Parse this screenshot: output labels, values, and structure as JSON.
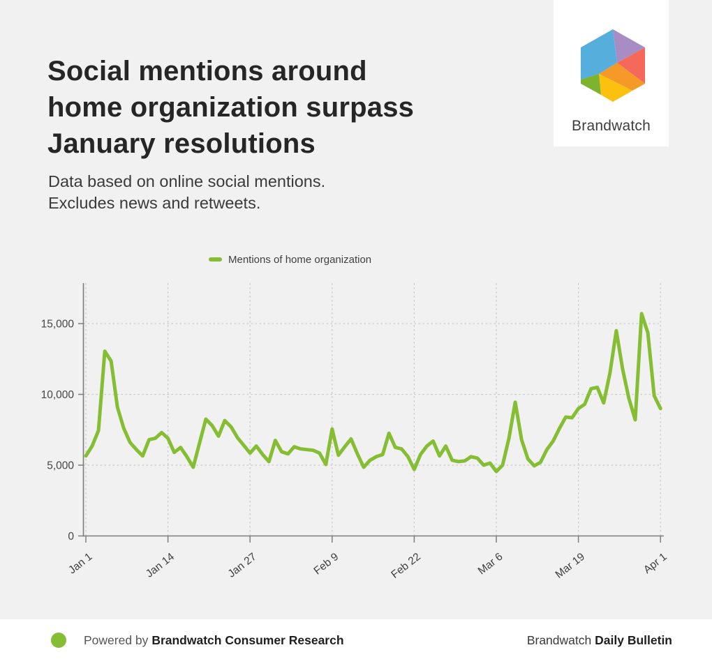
{
  "page": {
    "title": "Social mentions around\nhome organization surpass\nJanuary resolutions",
    "subtitle": "Data based on online social mentions.\nExcludes news and retweets."
  },
  "logo": {
    "brand_name": "Brandwatch",
    "colors": {
      "blue": "#55aedb",
      "purple": "#a88dc4",
      "coral": "#f5695a",
      "orange": "#f59929",
      "yellow": "#fcc00e",
      "green": "#7db32e"
    }
  },
  "legend": {
    "label": "Mentions of home organization"
  },
  "chart_data": {
    "type": "line",
    "series_name": "Mentions of home organization",
    "line_color": "#85bd33",
    "grid": "dashed",
    "legend_position": "top-center",
    "ylim": [
      0,
      17800
    ],
    "y_ticks": [
      0,
      5000,
      10000,
      15000
    ],
    "y_tick_labels": [
      "0",
      "5,000",
      "10,000",
      "15,000"
    ],
    "x_tick_indices": [
      0,
      13,
      26,
      39,
      52,
      65,
      78,
      91
    ],
    "x_tick_labels": [
      "Jan 1",
      "Jan 14",
      "Jan 27",
      "Feb 9",
      "Feb 22",
      "Mar 6",
      "Mar 19",
      "Apr 1"
    ],
    "x": [
      "Jan 1",
      "Jan 2",
      "Jan 3",
      "Jan 4",
      "Jan 5",
      "Jan 6",
      "Jan 7",
      "Jan 8",
      "Jan 9",
      "Jan 10",
      "Jan 11",
      "Jan 12",
      "Jan 13",
      "Jan 14",
      "Jan 15",
      "Jan 16",
      "Jan 17",
      "Jan 18",
      "Jan 19",
      "Jan 20",
      "Jan 21",
      "Jan 22",
      "Jan 23",
      "Jan 24",
      "Jan 25",
      "Jan 26",
      "Jan 27",
      "Jan 28",
      "Jan 29",
      "Jan 30",
      "Jan 31",
      "Feb 1",
      "Feb 2",
      "Feb 3",
      "Feb 4",
      "Feb 5",
      "Feb 6",
      "Feb 7",
      "Feb 8",
      "Feb 9",
      "Feb 10",
      "Feb 11",
      "Feb 12",
      "Feb 13",
      "Feb 14",
      "Feb 15",
      "Feb 16",
      "Feb 17",
      "Feb 18",
      "Feb 19",
      "Feb 20",
      "Feb 21",
      "Feb 22",
      "Feb 23",
      "Feb 24",
      "Feb 25",
      "Feb 26",
      "Feb 27",
      "Feb 28",
      "Feb 29",
      "Mar 1",
      "Mar 2",
      "Mar 3",
      "Mar 4",
      "Mar 5",
      "Mar 6",
      "Mar 7",
      "Mar 8",
      "Mar 9",
      "Mar 10",
      "Mar 11",
      "Mar 12",
      "Mar 13",
      "Mar 14",
      "Mar 15",
      "Mar 16",
      "Mar 17",
      "Mar 18",
      "Mar 19",
      "Mar 20",
      "Mar 21",
      "Mar 22",
      "Mar 23",
      "Mar 24",
      "Mar 25",
      "Mar 26",
      "Mar 27",
      "Mar 28",
      "Mar 29",
      "Mar 30",
      "Mar 31",
      "Apr 1"
    ],
    "values": [
      5650,
      6350,
      7450,
      13050,
      12350,
      9100,
      7600,
      6600,
      6100,
      5650,
      6800,
      6900,
      7300,
      6900,
      5900,
      6250,
      5600,
      4850,
      6550,
      8250,
      7800,
      7050,
      8150,
      7700,
      6950,
      6400,
      5850,
      6350,
      5750,
      5250,
      6750,
      5950,
      5800,
      6300,
      6150,
      6100,
      6050,
      5850,
      5050,
      7550,
      5700,
      6300,
      6850,
      5800,
      4850,
      5350,
      5600,
      5750,
      7250,
      6250,
      6150,
      5600,
      4700,
      5750,
      6350,
      6700,
      5650,
      6350,
      5350,
      5250,
      5300,
      5600,
      5500,
      5000,
      5150,
      4550,
      5000,
      6900,
      9450,
      6800,
      5450,
      4950,
      5200,
      6100,
      6700,
      7600,
      8400,
      8350,
      9000,
      9300,
      10400,
      10500,
      9400,
      11500,
      14500,
      11800,
      9700,
      8200,
      15700,
      14350,
      9900,
      9000
    ]
  },
  "footer": {
    "powered_by_prefix": "Powered by",
    "powered_by_brand": "Brandwatch Consumer Research",
    "right_prefix": "Brandwatch",
    "right_bold": "Daily Bulletin"
  }
}
